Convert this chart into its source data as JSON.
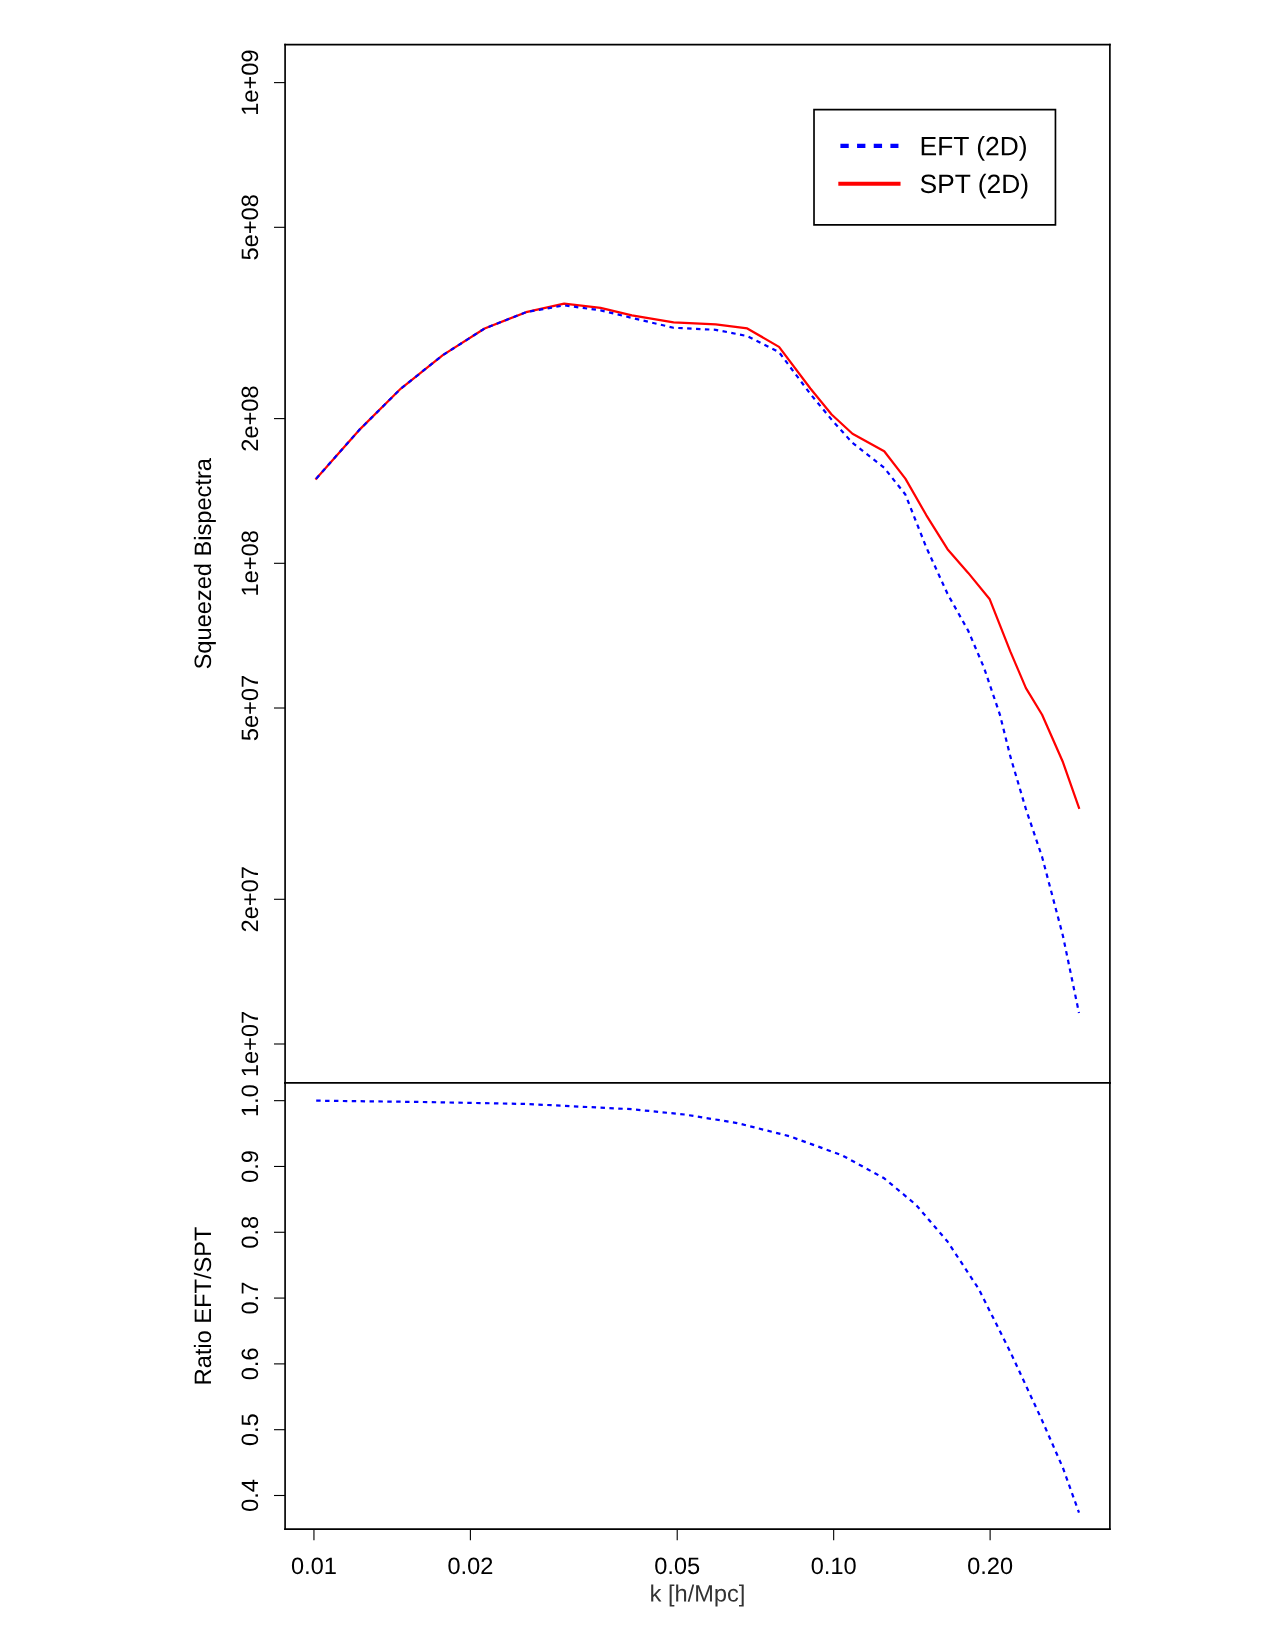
{
  "chart_data": [
    {
      "type": "line",
      "ylabel": "Squeezed Bispectra",
      "log": "xy",
      "xlim": [
        0.0088,
        0.34
      ],
      "ylim": [
        8300000.0,
        1200000000.0
      ],
      "yticks": [
        {
          "value": 10000000.0,
          "label": "1e+07"
        },
        {
          "value": 20000000.0,
          "label": "2e+07"
        },
        {
          "value": 50000000.0,
          "label": "5e+07"
        },
        {
          "value": 100000000.0,
          "label": "1e+08"
        },
        {
          "value": 200000000.0,
          "label": "2e+08"
        },
        {
          "value": 500000000.0,
          "label": "5e+08"
        },
        {
          "value": 1000000000.0,
          "label": "1e+09"
        }
      ],
      "tick_labels": "y",
      "legend": "top right",
      "grid": false,
      "series": [
        {
          "name": "EFT (2D)",
          "color": "#0000ff",
          "line_style": "dotted",
          "x": [
            0.0101,
            0.0122,
            0.0147,
            0.0177,
            0.0213,
            0.0256,
            0.0303,
            0.0356,
            0.0409,
            0.0492,
            0.0593,
            0.0682,
            0.0785,
            0.0902,
            0.0991,
            0.1087,
            0.1251,
            0.1374,
            0.1507,
            0.1656,
            0.1815,
            0.1946,
            0.2089,
            0.2188,
            0.2344,
            0.2518,
            0.2761,
            0.2965
          ],
          "values": [
            150000000.0,
            189000000.0,
            231000000.0,
            271000000.0,
            308000000.0,
            333000000.0,
            344000000.0,
            336000000.0,
            324000000.0,
            309000000.0,
            306000000.0,
            297000000.0,
            275000000.0,
            225000000.0,
            199000000.0,
            178000000.0,
            158000000.0,
            139000000.0,
            108000000.0,
            86400000.0,
            72400000.0,
            60700000.0,
            48400000.0,
            39600000.0,
            30800000.0,
            24500000.0,
            16800000.0,
            11600000.0
          ]
        },
        {
          "name": "SPT (2D)",
          "color": "#ff0000",
          "line_style": "solid",
          "x": [
            0.0101,
            0.0122,
            0.0147,
            0.0177,
            0.0213,
            0.0256,
            0.0303,
            0.0356,
            0.0409,
            0.0492,
            0.0593,
            0.0682,
            0.0785,
            0.0902,
            0.0991,
            0.1087,
            0.1251,
            0.1374,
            0.1507,
            0.1656,
            0.1815,
            0.1995,
            0.2188,
            0.2344,
            0.2518,
            0.2761,
            0.2965
          ],
          "values": [
            150000000.0,
            189000000.0,
            231000000.0,
            271000000.0,
            308000000.0,
            333000000.0,
            347000000.0,
            340000000.0,
            328000000.0,
            317000000.0,
            314000000.0,
            308000000.0,
            282000000.0,
            231000000.0,
            204000000.0,
            186000000.0,
            171000000.0,
            150000000.0,
            126000000.0,
            107000000.0,
            95500000.0,
            84300000.0,
            65500000.0,
            55000000.0,
            48400000.0,
            38600000.0,
            31000000.0
          ]
        }
      ]
    },
    {
      "type": "line",
      "xlabel": "k [h/Mpc]",
      "ylabel": "Ratio EFT/SPT",
      "log": "x",
      "xlim": [
        0.0088,
        0.34
      ],
      "ylim": [
        0.349,
        1.027
      ],
      "xticks": [
        0.01,
        0.02,
        0.05,
        {
          "value": 0.1,
          "label": "0.10"
        },
        {
          "value": 0.2,
          "label": "0.20"
        }
      ],
      "yticks": [
        0.4,
        0.5,
        0.6,
        0.7,
        0.8,
        0.9,
        {
          "value": 1.0,
          "label": "1.0"
        }
      ],
      "grid": false,
      "series": [
        {
          "color": "#0000ff",
          "line_style": "dotted",
          "x": [
            0.0101,
            0.0161,
            0.0256,
            0.0409,
            0.0516,
            0.0652,
            0.0822,
            0.1038,
            0.1251,
            0.1439,
            0.1656,
            0.1901,
            0.2188,
            0.2518,
            0.2761,
            0.2965
          ],
          "values": [
            1.0,
            0.998,
            0.995,
            0.987,
            0.979,
            0.966,
            0.946,
            0.917,
            0.882,
            0.842,
            0.786,
            0.714,
            0.618,
            0.514,
            0.442,
            0.374
          ]
        }
      ]
    }
  ]
}
